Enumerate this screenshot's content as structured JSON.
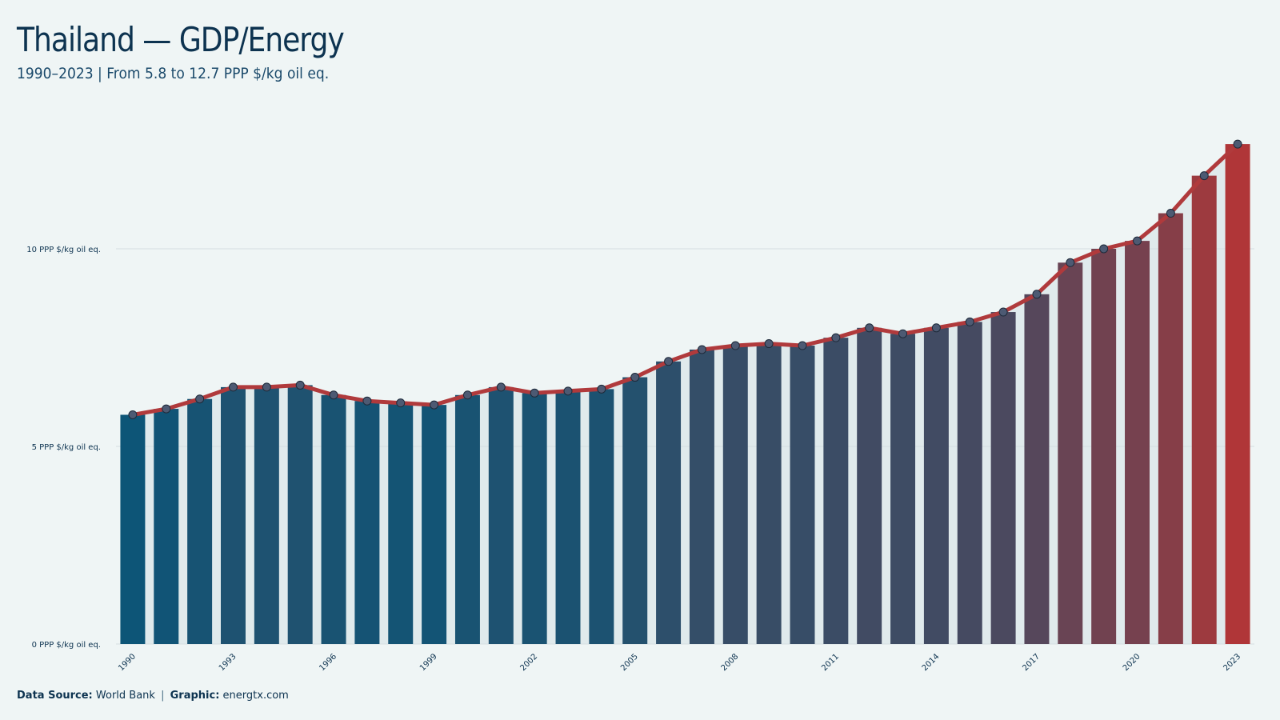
{
  "header": {
    "title": "Thailand — GDP/Energy",
    "subtitle": "1990–2023 | From 5.8 to 12.7 PPP $/kg oil eq."
  },
  "footer": {
    "source_label": "Data Source:",
    "source_value": "World Bank",
    "separator": "|",
    "graphic_label": "Graphic:",
    "graphic_value": "energtx.com"
  },
  "colors": {
    "background": "#eff5f5",
    "title": "#0d3350",
    "bar_start": "#0d5577",
    "bar_end": "#b03638",
    "line": "#b03a3c",
    "point_fill": "#4d5a73",
    "grid": "#d9e2e5"
  },
  "chart_data": {
    "type": "bar",
    "title": "Thailand — GDP/Energy",
    "subtitle": "1990–2023 | From 5.8 to 12.7 PPP $/kg oil eq.",
    "categories": [
      "1990",
      "1991",
      "1992",
      "1993",
      "1994",
      "1995",
      "1996",
      "1997",
      "1998",
      "1999",
      "2000",
      "2001",
      "2002",
      "2003",
      "2004",
      "2005",
      "2006",
      "2007",
      "2008",
      "2009",
      "2010",
      "2011",
      "2012",
      "2013",
      "2014",
      "2015",
      "2016",
      "2017",
      "2018",
      "2019",
      "2020",
      "2021",
      "2022",
      "2023"
    ],
    "values": [
      5.8,
      5.95,
      6.2,
      6.5,
      6.5,
      6.55,
      6.3,
      6.15,
      6.1,
      6.05,
      6.3,
      6.5,
      6.35,
      6.4,
      6.45,
      6.75,
      7.15,
      7.45,
      7.55,
      7.6,
      7.55,
      7.75,
      8.0,
      7.85,
      8.0,
      8.15,
      8.4,
      8.85,
      9.65,
      10.0,
      10.2,
      10.9,
      11.85,
      12.65
    ],
    "overlay": "line with markers following bar values",
    "x_tick_labels": [
      "1990",
      "1993",
      "1996",
      "1999",
      "2002",
      "2005",
      "2008",
      "2011",
      "2014",
      "2017",
      "2020",
      "2023"
    ],
    "y_ticks": [
      0,
      5,
      10
    ],
    "y_tick_labels": [
      "0 PPP $/kg oil eq.",
      "5 PPP $/kg oil eq.",
      "10 PPP $/kg oil eq."
    ],
    "ylim": [
      0,
      13.5
    ],
    "xlabel": "",
    "ylabel": "",
    "grid": "horizontal",
    "legend": "none"
  }
}
